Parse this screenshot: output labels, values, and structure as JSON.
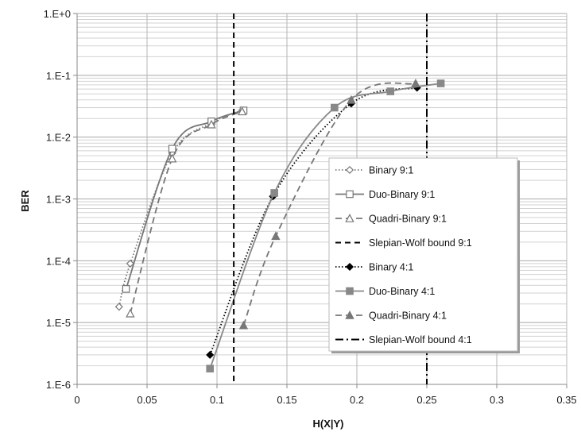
{
  "chart_data": {
    "type": "line",
    "title": "",
    "xlabel": "H(X|Y)",
    "ylabel": "BER",
    "xlim": [
      0,
      0.35
    ],
    "ylim": [
      1e-06,
      1
    ],
    "y_scale": "log",
    "x_ticks": [
      0,
      0.05,
      0.1,
      0.15,
      0.2,
      0.25,
      0.3,
      0.35
    ],
    "x_tick_labels": [
      "0",
      "0.05",
      "0.1",
      "0.15",
      "0.2",
      "0.25",
      "0.3",
      "0.35"
    ],
    "y_ticks": [
      1e-06,
      1e-05,
      0.0001,
      0.001,
      0.01,
      0.1,
      1
    ],
    "y_tick_labels": [
      "1.E-6",
      "1.E-5",
      "1.E-4",
      "1.E-3",
      "1.E-2",
      "1.E-1",
      "1.E+0"
    ],
    "grid": true,
    "legend_position": "right, inside plot",
    "series": [
      {
        "name": "Binary 9:1",
        "color": "#777777",
        "dash": "dotted",
        "marker": "diamond-open",
        "points": [
          [
            0.03,
            1.8e-05
          ],
          [
            0.038,
            9e-05
          ],
          [
            0.068,
            0.0055
          ],
          [
            0.096,
            0.017
          ],
          [
            0.118,
            0.027
          ]
        ]
      },
      {
        "name": "Duo-Binary 9:1",
        "color": "#777777",
        "dash": "solid",
        "marker": "square-open",
        "points": [
          [
            0.035,
            3.5e-05
          ],
          [
            0.068,
            0.0065
          ],
          [
            0.096,
            0.018
          ],
          [
            0.119,
            0.027
          ]
        ]
      },
      {
        "name": "Quadri-Binary 9:1",
        "color": "#777777",
        "dash": "dashed",
        "marker": "triangle-open",
        "points": [
          [
            0.038,
            1.4e-05
          ],
          [
            0.068,
            0.0045
          ],
          [
            0.096,
            0.016
          ],
          [
            0.118,
            0.026
          ]
        ]
      },
      {
        "name": "Slepian-Wolf bound 9:1",
        "color": "#000000",
        "dash": "bound-dashed",
        "marker": "none",
        "vline": 0.112
      },
      {
        "name": "Binary 4:1",
        "color": "#000000",
        "dash": "dotted",
        "marker": "diamond-filled",
        "points": [
          [
            0.095,
            3e-06
          ],
          [
            0.14,
            0.0011
          ],
          [
            0.196,
            0.035
          ],
          [
            0.243,
            0.063
          ]
        ]
      },
      {
        "name": "Duo-Binary 4:1",
        "color": "#888888",
        "dash": "solid",
        "marker": "square-filled",
        "points": [
          [
            0.095,
            1.8e-06
          ],
          [
            0.141,
            0.00125
          ],
          [
            0.184,
            0.03
          ],
          [
            0.224,
            0.055
          ],
          [
            0.26,
            0.074
          ]
        ]
      },
      {
        "name": "Quadri-Binary 4:1",
        "color": "#777777",
        "dash": "dashed",
        "marker": "triangle-filled",
        "points": [
          [
            0.119,
            9e-06
          ],
          [
            0.142,
            0.00025
          ],
          [
            0.196,
            0.04
          ],
          [
            0.242,
            0.074
          ]
        ]
      },
      {
        "name": "Slepian-Wolf bound 4:1",
        "color": "#000000",
        "dash": "dash-dot",
        "marker": "none",
        "vline": 0.25
      }
    ]
  }
}
